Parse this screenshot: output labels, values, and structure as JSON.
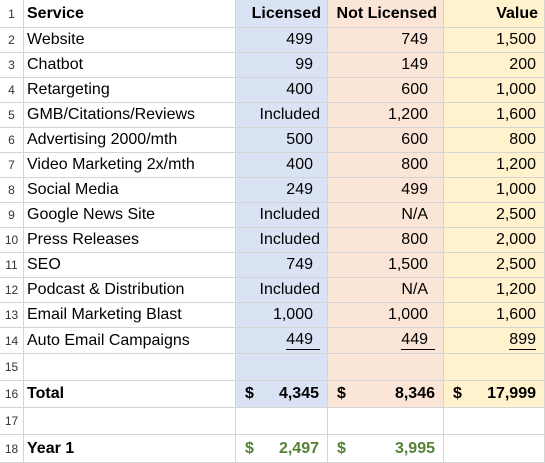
{
  "colors": {
    "licensed_bg": "#dae3f3",
    "not_licensed_bg": "#fbe5d6",
    "value_bg": "#fff2cc",
    "year1_text": "#548235",
    "gridline": "#d4d4d4"
  },
  "header": {
    "row_num": "1",
    "service": "Service",
    "licensed": "Licensed",
    "not_licensed": "Not Licensed",
    "value": "Value"
  },
  "rows": [
    {
      "num": "2",
      "service": "Website",
      "licensed": "499",
      "not_licensed": "749",
      "value": "1,500"
    },
    {
      "num": "3",
      "service": "Chatbot",
      "licensed": "99",
      "not_licensed": "149",
      "value": "200"
    },
    {
      "num": "4",
      "service": "Retargeting",
      "licensed": "400",
      "not_licensed": "600",
      "value": "1,000"
    },
    {
      "num": "5",
      "service": "GMB/Citations/Reviews",
      "licensed": "Included",
      "not_licensed": "1,200",
      "value": "1,600"
    },
    {
      "num": "6",
      "service": "Advertising 2000/mth",
      "licensed": "500",
      "not_licensed": "600",
      "value": "800"
    },
    {
      "num": "7",
      "service": "Video Marketing 2x/mth",
      "licensed": "400",
      "not_licensed": "800",
      "value": "1,200"
    },
    {
      "num": "8",
      "service": "Social Media",
      "licensed": "249",
      "not_licensed": "499",
      "value": "1,000"
    },
    {
      "num": "9",
      "service": "Google News Site",
      "licensed": "Included",
      "not_licensed": "N/A",
      "value": "2,500"
    },
    {
      "num": "10",
      "service": "Press Releases",
      "licensed": "Included",
      "not_licensed": "800",
      "value": "2,000"
    },
    {
      "num": "11",
      "service": "SEO",
      "licensed": "749",
      "not_licensed": "1,500",
      "value": "2,500"
    },
    {
      "num": "12",
      "service": "Podcast & Distribution",
      "licensed": "Included",
      "not_licensed": "N/A",
      "value": "1,200"
    },
    {
      "num": "13",
      "service": "Email Marketing Blast",
      "licensed": "1,000",
      "not_licensed": "1,000",
      "value": "1,600"
    },
    {
      "num": "14",
      "service": "Auto Email Campaigns",
      "licensed": "449",
      "not_licensed": "449",
      "value": "899"
    }
  ],
  "blank_row_1": {
    "num": "15"
  },
  "total": {
    "num": "16",
    "label": "Total",
    "licensed_symbol": "$",
    "licensed": "4,345",
    "not_licensed_symbol": "$",
    "not_licensed": "8,346",
    "value_symbol": "$",
    "value": "17,999"
  },
  "blank_row_2": {
    "num": "17"
  },
  "year1": {
    "num": "18",
    "label": "Year 1",
    "licensed_symbol": "$",
    "licensed": "2,497",
    "not_licensed_symbol": "$",
    "not_licensed": "3,995"
  }
}
